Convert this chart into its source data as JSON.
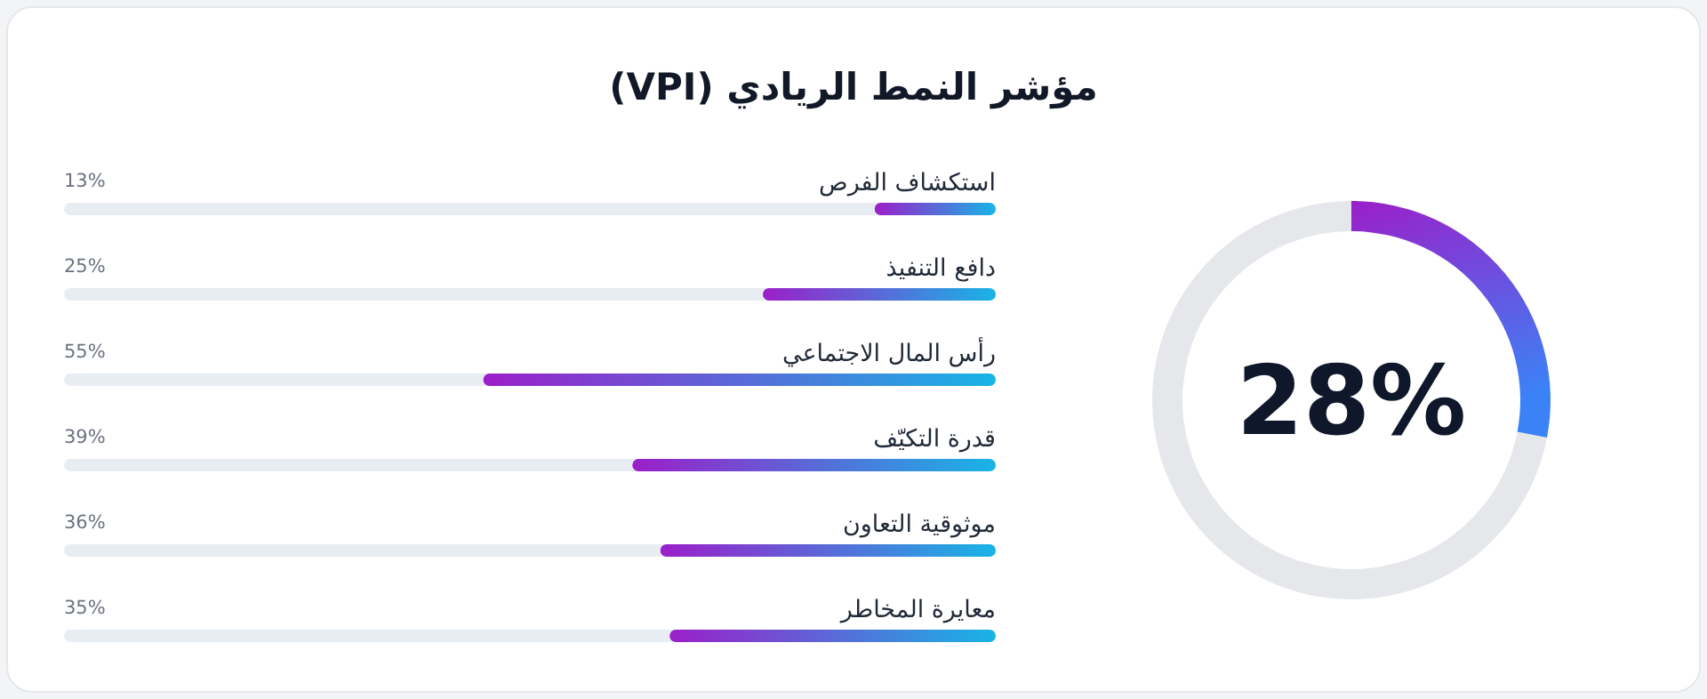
{
  "chart_data": [
    {
      "type": "bar",
      "orientation": "horizontal",
      "title": "مؤشر النمط الريادي (VPI)",
      "categories": [
        "استكشاف الفرص",
        "دافع التنفيذ",
        "رأس المال الاجتماعي",
        "قدرة التكيّف",
        "موثوقية التعاون",
        "معايرة المخاطر"
      ],
      "values": [
        13,
        25,
        55,
        39,
        36,
        35
      ],
      "value_labels": [
        "13%",
        "25%",
        "55%",
        "39%",
        "36%",
        "35%"
      ],
      "color": "#9b1fc9",
      "xlim": [
        100,
        0
      ]
    },
    {
      "type": "donut",
      "categories": [
        null,
        null
      ],
      "values": [
        28,
        72
      ],
      "colors": [
        "#9b1fc9",
        "#e5e7eb"
      ],
      "annotations": [
        "28%"
      ]
    }
  ]
}
